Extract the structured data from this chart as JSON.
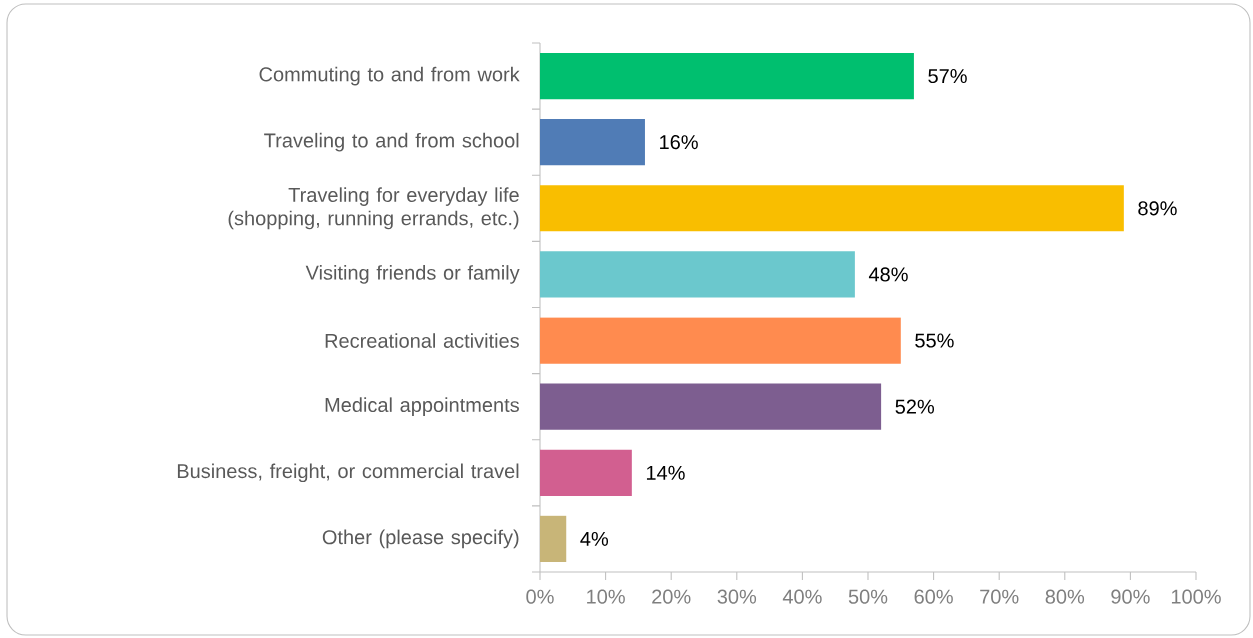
{
  "chart_data": {
    "type": "bar",
    "orientation": "horizontal",
    "categories": [
      "Commuting to and from work",
      "Traveling to and from school",
      "Traveling for everyday life (shopping, running errands, etc.)",
      "Visiting friends or family",
      "Recreational activities",
      "Medical appointments",
      "Business, freight, or commercial travel",
      "Other (please specify)"
    ],
    "values": [
      57,
      16,
      89,
      48,
      55,
      52,
      14,
      4
    ],
    "colors": [
      "#00bf6f",
      "#507cb6",
      "#f9be00",
      "#6bc8cd",
      "#ff8b4f",
      "#7d5e90",
      "#d25f90",
      "#c8b578"
    ],
    "value_labels": [
      "57%",
      "16%",
      "89%",
      "48%",
      "55%",
      "52%",
      "14%",
      "4%"
    ],
    "xlim": [
      0,
      100
    ],
    "xticks": [
      {
        "value": 0,
        "label": "0%"
      },
      {
        "value": 10,
        "label": "10%"
      },
      {
        "value": 20,
        "label": "20%"
      },
      {
        "value": 30,
        "label": "30%"
      },
      {
        "value": 40,
        "label": "40%"
      },
      {
        "value": 50,
        "label": "50%"
      },
      {
        "value": 60,
        "label": "60%"
      },
      {
        "value": 70,
        "label": "70%"
      },
      {
        "value": 80,
        "label": "80%"
      },
      {
        "value": 90,
        "label": "90%"
      },
      {
        "value": 100,
        "label": "100%"
      }
    ]
  }
}
